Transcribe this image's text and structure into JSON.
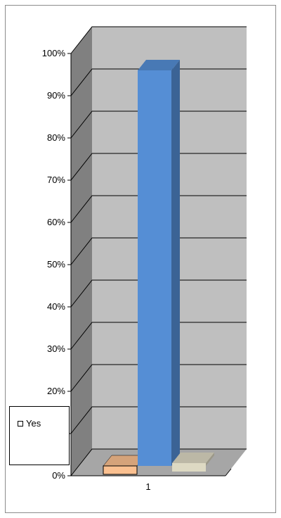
{
  "chart_data": {
    "type": "bar",
    "style": "3d-column",
    "categories": [
      "1"
    ],
    "series": [
      {
        "name": "Yes",
        "values": [
          2
        ],
        "color": "#FAC090"
      },
      {
        "values": [
          96
        ],
        "color": "#558ED5"
      },
      {
        "values": [
          3
        ],
        "color": "#DDD9C3"
      }
    ],
    "ylim": [
      0,
      100
    ],
    "yticks": [
      "0%",
      "10%",
      "20%",
      "30%",
      "40%",
      "50%",
      "60%",
      "70%",
      "80%",
      "90%",
      "100%"
    ],
    "grid": true,
    "legend_position": "bottom-left",
    "colors": {
      "back_wall": "#BFBFBF",
      "side_wall": "#808080",
      "floor": "#A6A6A6",
      "gridline": "#000000"
    }
  }
}
